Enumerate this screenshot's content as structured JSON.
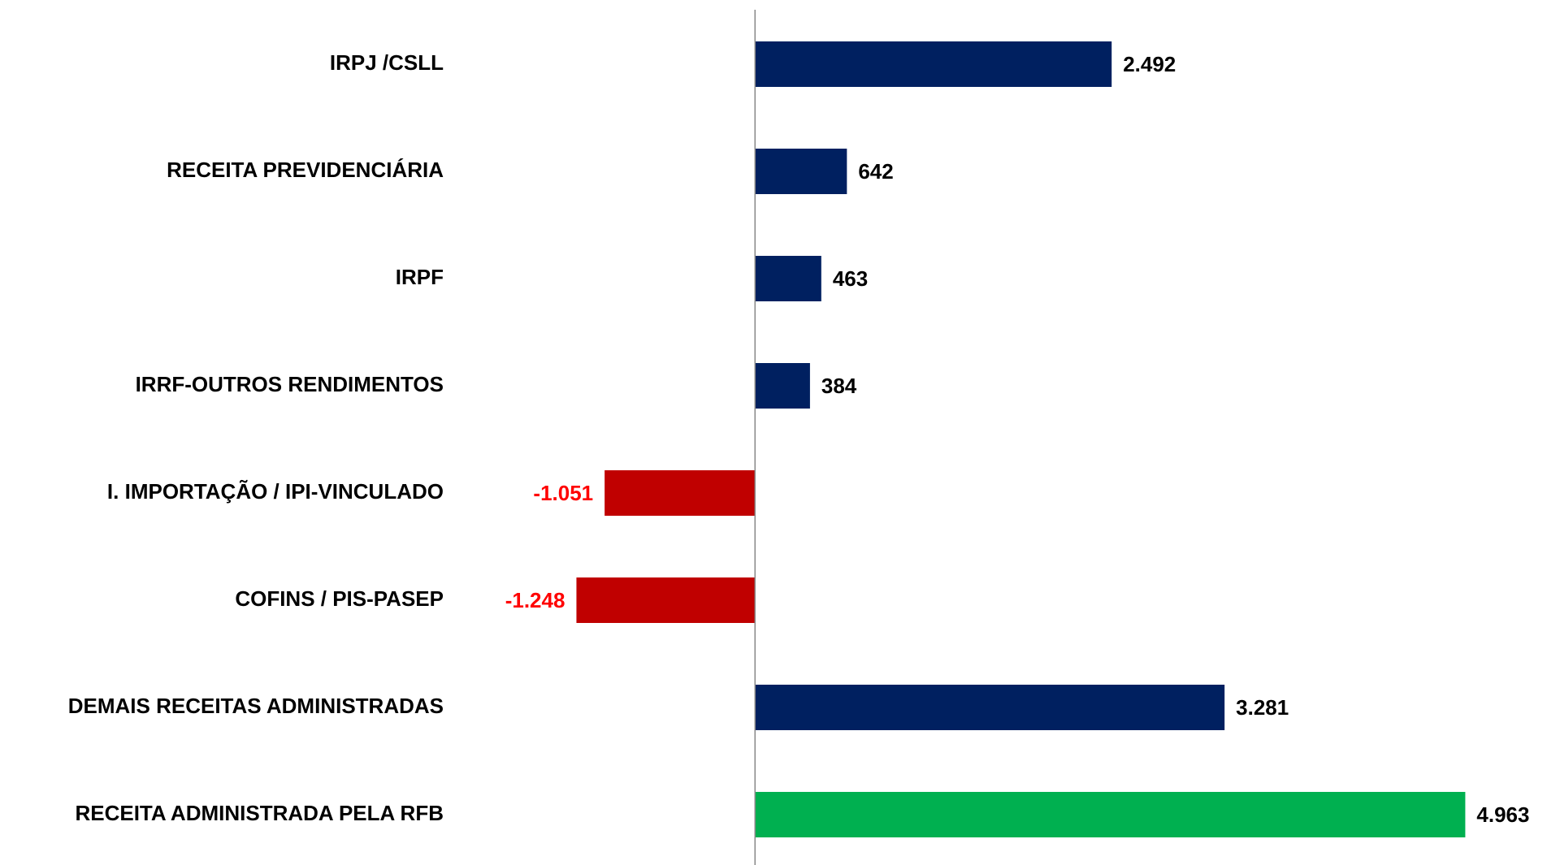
{
  "chart_data": {
    "type": "hbar",
    "categories": [
      "IRPJ /CSLL",
      "RECEITA PREVIDENCIÁRIA",
      "IRPF",
      "IRRF-OUTROS RENDIMENTOS",
      "I. IMPORTAÇÃO / IPI-VINCULADO",
      "COFINS / PIS-PASEP",
      "DEMAIS RECEITAS ADMINISTRADAS",
      "RECEITA ADMINISTRADA PELA RFB"
    ],
    "values": [
      2492,
      642,
      463,
      384,
      -1051,
      -1248,
      3281,
      4963
    ],
    "value_labels": [
      "2.492",
      "642",
      "463",
      "384",
      "-1.051",
      "-1.248",
      "3.281",
      "4.963"
    ],
    "colors": [
      "#002060",
      "#002060",
      "#002060",
      "#002060",
      "#C00000",
      "#C00000",
      "#002060",
      "#00B050"
    ],
    "value_label_colors": [
      "#000000",
      "#000000",
      "#000000",
      "#000000",
      "#FF0000",
      "#FF0000",
      "#000000",
      "#000000"
    ],
    "xlim": [
      -2000,
      5500
    ]
  }
}
